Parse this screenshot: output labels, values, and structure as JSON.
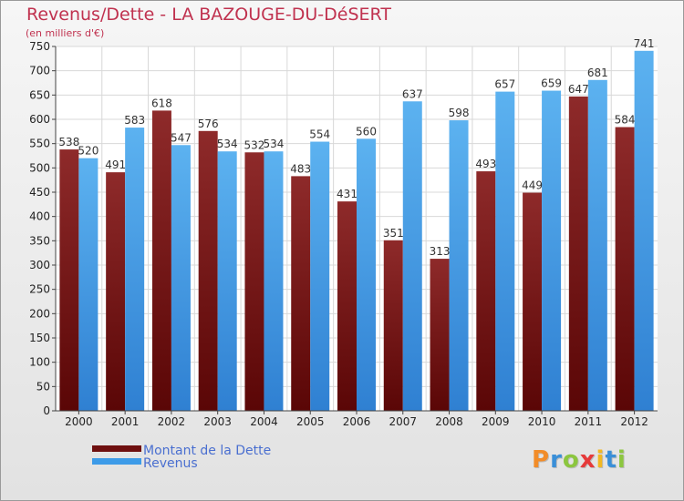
{
  "title": "Revenus/Dette - LA BAZOUGE-DU-DéSERT",
  "subtitle": "(en milliers d'€)",
  "colors": {
    "dette": "#7a1a1a",
    "revenus": "#4aa3e4",
    "title": "#c0324f",
    "legend_text": "#4a6fd0"
  },
  "legend": [
    {
      "label": "Montant de la Dette",
      "color": "#6e0f0f"
    },
    {
      "label": "Revenus",
      "color": "#3d9be8"
    }
  ],
  "logo": {
    "text": "Proxiti"
  },
  "chart_data": {
    "type": "bar",
    "title": "Revenus/Dette - LA BAZOUGE-DU-DéSERT",
    "ylabel": "(en milliers d'€)",
    "categories": [
      "2000",
      "2001",
      "2002",
      "2003",
      "2004",
      "2005",
      "2006",
      "2007",
      "2008",
      "2009",
      "2010",
      "2011",
      "2012"
    ],
    "series": [
      {
        "name": "Montant de la Dette",
        "values": [
          538,
          491,
          618,
          576,
          532,
          483,
          431,
          351,
          313,
          493,
          449,
          647,
          584
        ]
      },
      {
        "name": "Revenus",
        "values": [
          520,
          583,
          547,
          534,
          534,
          554,
          560,
          637,
          598,
          657,
          659,
          681,
          741
        ]
      }
    ],
    "ylim": [
      0,
      750
    ],
    "yticks": [
      0,
      50,
      100,
      150,
      200,
      250,
      300,
      350,
      400,
      450,
      500,
      550,
      600,
      650,
      700,
      750
    ],
    "grid": true,
    "legend_position": "bottom-left"
  }
}
